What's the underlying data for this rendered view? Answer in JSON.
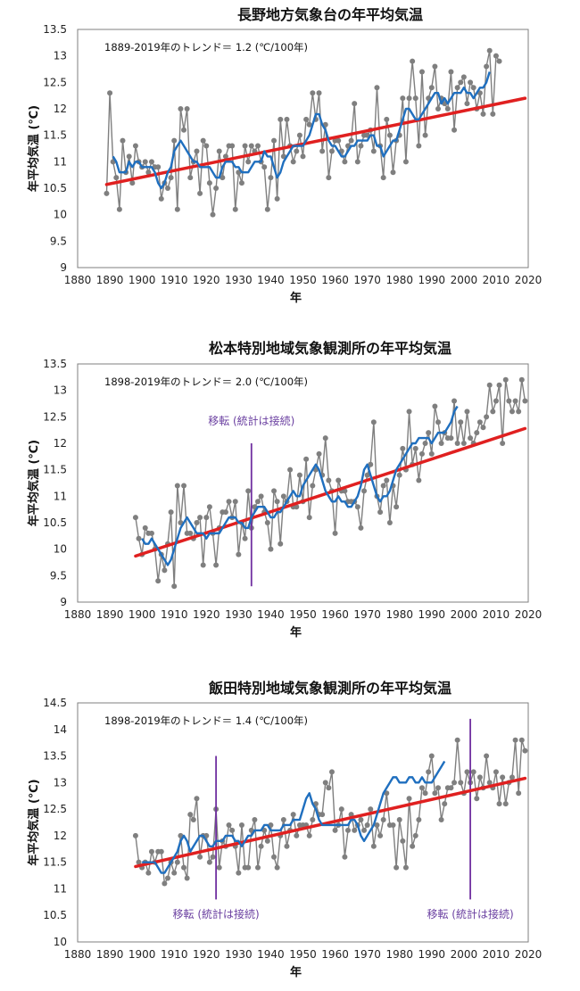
{
  "colors": {
    "observed": "#7f7f7f",
    "moving_avg": "#1f6fbf",
    "trend": "#e02020",
    "relocation": "#7030a0",
    "frame": "#7f7f7f"
  },
  "chart_data": [
    {
      "type": "line",
      "title": "長野地方気象台の年平均気温",
      "xlabel": "年",
      "ylabel": "年平均気温 (℃)",
      "xlim": [
        1880,
        2020
      ],
      "ylim": [
        9,
        13.5
      ],
      "x_ticks": [
        1880,
        1890,
        1900,
        1910,
        1920,
        1930,
        1940,
        1950,
        1960,
        1970,
        1980,
        1990,
        2000,
        2010,
        2020
      ],
      "y_ticks": [
        "9",
        "9.5",
        "10",
        "10.5",
        "11",
        "11.5",
        "12",
        "12.5",
        "13",
        "13.5"
      ],
      "trend_note": "1889-2019年のトレンド＝ 1.2 (℃/100年)",
      "trend_line": {
        "x": [
          1889,
          2019
        ],
        "y": [
          10.57,
          12.2
        ]
      },
      "relocations": [],
      "series": [
        {
          "role": "observed",
          "start_year": 1889,
          "values": [
            10.4,
            12.3,
            11.0,
            10.7,
            10.1,
            11.4,
            10.8,
            11.1,
            10.6,
            11.3,
            11.0,
            10.9,
            11.0,
            10.8,
            11.0,
            10.9,
            10.9,
            10.3,
            10.6,
            10.5,
            10.7,
            11.4,
            10.1,
            12.0,
            11.6,
            12.0,
            10.7,
            11.0,
            11.2,
            10.4,
            11.4,
            11.3,
            10.6,
            10.0,
            10.5,
            11.2,
            10.7,
            11.1,
            11.3,
            11.3,
            10.1,
            10.8,
            10.6,
            11.3,
            11.0,
            11.3,
            11.2,
            11.3,
            11.0,
            10.9,
            10.1,
            10.7,
            11.4,
            10.3,
            11.8,
            11.1,
            11.8,
            11.3,
            11.0,
            11.2,
            11.5,
            11.1,
            11.8,
            11.7,
            12.3,
            11.8,
            12.3,
            11.2,
            11.7,
            10.7,
            11.2,
            11.4,
            11.4,
            11.2,
            11.0,
            11.3,
            11.4,
            12.1,
            11.0,
            11.3,
            11.5,
            11.5,
            11.6,
            11.2,
            12.4,
            11.3,
            10.7,
            11.8,
            11.5,
            10.8,
            11.4,
            11.5,
            12.2,
            11.0,
            12.2,
            12.9,
            12.2,
            11.3,
            12.7,
            11.5,
            12.2,
            12.4,
            12.8,
            12.0,
            12.2,
            12.1,
            12.0,
            12.7,
            11.6,
            12.4,
            12.5,
            12.6,
            12.1,
            12.5,
            12.4,
            12.0,
            12.3,
            11.9,
            12.8,
            13.1,
            11.9,
            13.0,
            12.9
          ]
        },
        {
          "role": "moving_avg",
          "start_year": 1891,
          "values": [
            11.1,
            11.0,
            10.8,
            10.8,
            10.8,
            11.0,
            10.9,
            11.0,
            11.0,
            10.9,
            10.9,
            10.9,
            10.9,
            10.8,
            10.6,
            10.5,
            10.6,
            10.8,
            10.9,
            11.2,
            11.3,
            11.4,
            11.3,
            11.2,
            11.1,
            11.0,
            11.0,
            10.9,
            10.9,
            10.9,
            10.9,
            10.8,
            10.7,
            10.7,
            10.9,
            11.0,
            11.0,
            11.0,
            10.9,
            10.9,
            10.8,
            10.8,
            10.8,
            10.9,
            11.0,
            11.0,
            11.0,
            11.2,
            11.1,
            11.1,
            10.9,
            10.7,
            10.8,
            11.0,
            11.1,
            11.2,
            11.3,
            11.3,
            11.3,
            11.3,
            11.4,
            11.5,
            11.7,
            11.9,
            11.9,
            11.7,
            11.6,
            11.4,
            11.3,
            11.3,
            11.2,
            11.1,
            11.1,
            11.2,
            11.3,
            11.3,
            11.4,
            11.4,
            11.4,
            11.4,
            11.5,
            11.5,
            11.3,
            11.3,
            11.1,
            11.2,
            11.3,
            11.4,
            11.4,
            11.6,
            11.8,
            12.0,
            12.0,
            11.9,
            11.8,
            11.8,
            11.9,
            12.0,
            12.1,
            12.2,
            12.3,
            12.3,
            12.1,
            12.2,
            12.1,
            12.2,
            12.3,
            12.3,
            12.3,
            12.4,
            12.3,
            12.3,
            12.2,
            12.3,
            12.4,
            12.4,
            12.5,
            12.7
          ]
        }
      ]
    },
    {
      "type": "line",
      "title": "松本特別地域気象観測所の年平均気温",
      "xlabel": "年",
      "ylabel": "年平均気温 (℃)",
      "xlim": [
        1880,
        2020
      ],
      "ylim": [
        9,
        13.5
      ],
      "x_ticks": [
        1880,
        1890,
        1900,
        1910,
        1920,
        1930,
        1940,
        1950,
        1960,
        1970,
        1980,
        1990,
        2000,
        2010,
        2020
      ],
      "y_ticks": [
        "9",
        "9.5",
        "10",
        "10.5",
        "11",
        "11.5",
        "12",
        "12.5",
        "13",
        "13.5"
      ],
      "trend_note": "1898-2019年のトレンド＝ 2.0 (℃/100年)",
      "trend_line": {
        "x": [
          1898,
          2019
        ],
        "y": [
          9.87,
          12.28
        ]
      },
      "relocations": [
        {
          "year": 1934,
          "label": "移転 (統計は接続)",
          "y_top": 12.0,
          "y_bottom": 9.3,
          "label_y": 12.35
        }
      ],
      "series": [
        {
          "role": "observed",
          "start_year": 1898,
          "values": [
            10.6,
            10.2,
            9.9,
            10.4,
            10.3,
            10.3,
            10.0,
            9.4,
            9.9,
            9.6,
            10.1,
            10.7,
            9.3,
            11.2,
            10.5,
            11.2,
            10.3,
            10.3,
            10.2,
            10.5,
            10.6,
            9.7,
            10.6,
            10.8,
            10.3,
            9.7,
            10.4,
            10.7,
            10.7,
            10.9,
            10.6,
            10.9,
            9.9,
            10.5,
            10.2,
            11.1,
            10.4,
            10.8,
            10.9,
            11.0,
            10.7,
            10.5,
            10.0,
            11.1,
            10.9,
            10.1,
            11.0,
            10.9,
            11.5,
            10.8,
            10.8,
            11.4,
            10.9,
            11.7,
            10.6,
            11.2,
            11.5,
            11.8,
            11.4,
            12.1,
            11.3,
            11.1,
            10.3,
            11.3,
            11.1,
            11.1,
            10.9,
            10.9,
            10.9,
            10.8,
            10.4,
            11.1,
            11.4,
            11.6,
            12.4,
            11.0,
            10.7,
            11.2,
            11.3,
            10.5,
            11.2,
            10.8,
            11.4,
            11.9,
            11.5,
            12.6,
            11.6,
            11.9,
            11.3,
            11.8,
            12.0,
            12.2,
            11.8,
            12.7,
            12.4,
            12.0,
            12.2,
            12.1,
            12.1,
            12.8,
            12.0,
            12.4,
            12.0,
            12.6,
            12.1,
            12.0,
            12.2,
            12.4,
            12.3,
            12.5,
            13.1,
            12.6,
            12.8,
            13.1,
            12.0,
            13.2,
            12.8,
            12.6,
            12.8,
            12.6,
            13.2,
            12.8
          ]
        },
        {
          "role": "moving_avg",
          "start_year": 1900,
          "values": [
            10.2,
            10.1,
            10.1,
            10.2,
            10.1,
            10.0,
            9.9,
            9.8,
            9.7,
            9.8,
            10.0,
            10.2,
            10.4,
            10.5,
            10.6,
            10.5,
            10.4,
            10.3,
            10.3,
            10.3,
            10.2,
            10.3,
            10.3,
            10.3,
            10.3,
            10.4,
            10.5,
            10.6,
            10.6,
            10.6,
            10.5,
            10.5,
            10.4,
            10.4,
            10.6,
            10.7,
            10.8,
            10.8,
            10.8,
            10.7,
            10.6,
            10.6,
            10.7,
            10.7,
            10.8,
            10.9,
            11.0,
            11.1,
            11.0,
            11.0,
            11.2,
            11.3,
            11.4,
            11.5,
            11.6,
            11.5,
            11.3,
            11.1,
            11.0,
            10.9,
            10.9,
            11.0,
            10.9,
            10.9,
            10.8,
            10.8,
            10.9,
            11.0,
            11.2,
            11.5,
            11.6,
            11.4,
            11.2,
            11.0,
            10.9,
            11.0,
            11.0,
            11.1,
            11.3,
            11.5,
            11.6,
            11.7,
            11.8,
            11.9,
            12.0,
            12.0,
            12.1,
            12.1,
            12.1,
            12.1,
            12.0,
            12.1,
            12.2,
            12.2,
            12.2,
            12.3,
            12.4,
            12.6,
            12.7
          ]
        }
      ]
    },
    {
      "type": "line",
      "title": "飯田特別地域気象観測所の年平均気温",
      "xlabel": "年",
      "ylabel": "年平均気温 (℃)",
      "xlim": [
        1880,
        2020
      ],
      "ylim": [
        10,
        14.5
      ],
      "x_ticks": [
        1880,
        1890,
        1900,
        1910,
        1920,
        1930,
        1940,
        1950,
        1960,
        1970,
        1980,
        1990,
        2000,
        2010,
        2020
      ],
      "y_ticks": [
        "10",
        "10.5",
        "11",
        "11.5",
        "12",
        "12.5",
        "13",
        "13.5",
        "14",
        "14.5"
      ],
      "trend_note": "1898-2019年のトレンド＝ 1.4 (℃/100年)",
      "trend_line": {
        "x": [
          1898,
          2019
        ],
        "y": [
          11.42,
          13.08
        ]
      },
      "relocations": [
        {
          "year": 1923,
          "label": "移転 (統計は接続)",
          "y_top": 13.5,
          "y_bottom": 10.8,
          "label_y": 10.45
        },
        {
          "year": 2002,
          "label": "移転 (統計は接続)",
          "y_top": 14.2,
          "y_bottom": 10.8,
          "label_y": 10.45
        }
      ],
      "series": [
        {
          "role": "observed",
          "start_year": 1898,
          "values": [
            12.0,
            11.5,
            11.4,
            11.5,
            11.3,
            11.7,
            11.5,
            11.7,
            11.7,
            11.1,
            11.2,
            11.5,
            11.3,
            11.5,
            12.0,
            11.4,
            11.2,
            12.4,
            12.3,
            12.7,
            11.6,
            12.0,
            12.0,
            11.5,
            11.6,
            12.5,
            11.4,
            11.9,
            11.8,
            12.2,
            12.1,
            11.8,
            11.3,
            12.2,
            11.4,
            11.4,
            12.1,
            12.3,
            11.4,
            11.8,
            12.1,
            11.9,
            12.2,
            11.6,
            11.4,
            12.0,
            12.3,
            11.8,
            12.1,
            12.4,
            12.0,
            12.2,
            12.2,
            12.2,
            12.0,
            12.3,
            12.6,
            12.4,
            12.4,
            13.0,
            12.9,
            13.2,
            12.1,
            12.2,
            12.5,
            11.6,
            12.1,
            12.4,
            12.1,
            12.2,
            12.3,
            12.1,
            12.2,
            12.5,
            11.8,
            12.2,
            12.0,
            12.3,
            12.8,
            12.2,
            12.2,
            11.4,
            12.3,
            11.9,
            11.4,
            12.7,
            11.8,
            12.0,
            12.3,
            12.9,
            12.8,
            13.2,
            13.5,
            12.8,
            12.9,
            12.3,
            12.6,
            12.9,
            12.9,
            13.0,
            13.8,
            13.0,
            12.8,
            13.2,
            13.0,
            13.2,
            12.7,
            13.1,
            12.9,
            13.5,
            13.0,
            12.9,
            13.2,
            12.6,
            13.1,
            12.6,
            13.0,
            13.1,
            13.8,
            12.8,
            13.8,
            13.6
          ]
        },
        {
          "role": "moving_avg",
          "start_year": 1900,
          "values": [
            11.5,
            11.5,
            11.5,
            11.5,
            11.5,
            11.4,
            11.3,
            11.3,
            11.4,
            11.5,
            11.6,
            11.7,
            11.9,
            12.0,
            11.9,
            11.7,
            11.8,
            11.9,
            12.0,
            12.0,
            11.9,
            11.8,
            11.8,
            11.9,
            11.9,
            11.9,
            12.0,
            12.0,
            12.0,
            11.9,
            11.9,
            11.8,
            11.9,
            12.0,
            12.0,
            12.1,
            12.1,
            12.1,
            12.2,
            12.2,
            12.1,
            12.1,
            12.1,
            12.1,
            12.2,
            12.2,
            12.2,
            12.3,
            12.3,
            12.3,
            12.5,
            12.7,
            12.8,
            12.6,
            12.5,
            12.3,
            12.2,
            12.2,
            12.2,
            12.2,
            12.2,
            12.2,
            12.2,
            12.2,
            12.2,
            12.3,
            12.3,
            12.2,
            12.0,
            11.9,
            12.0,
            12.1,
            12.2,
            12.4,
            12.6,
            12.8,
            12.9,
            13.0,
            13.1,
            13.1,
            13.0,
            13.0,
            13.0,
            13.1,
            13.1,
            13.0,
            13.0,
            13.1,
            13.0,
            13.0,
            13.0,
            13.1,
            13.2,
            13.3,
            13.4
          ]
        }
      ]
    }
  ]
}
